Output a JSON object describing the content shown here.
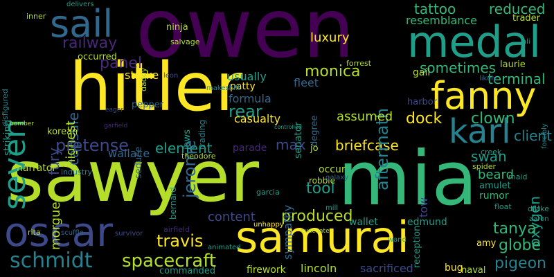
{
  "background": "#000000",
  "palette": {
    "yellow": "#fde725",
    "lime": "#b5de2b",
    "green": "#35b779",
    "teal": "#1f9e89",
    "cyan": "#26828e",
    "blue": "#31688e",
    "indigo": "#3e4989",
    "purple": "#482878",
    "violet": "#440154"
  },
  "words": [
    {
      "text": "owen",
      "color": "violet",
      "rotated": false
    },
    {
      "text": "hitler",
      "color": "yellow",
      "rotated": false
    },
    {
      "text": "sawyer",
      "color": "lime",
      "rotated": false
    },
    {
      "text": "mia",
      "color": "green",
      "rotated": false
    },
    {
      "text": "samurai",
      "color": "yellow",
      "rotated": false
    },
    {
      "text": "seven",
      "color": "teal",
      "rotated": true
    },
    {
      "text": "medal",
      "color": "teal",
      "rotated": false
    },
    {
      "text": "oscar",
      "color": "indigo",
      "rotated": false
    },
    {
      "text": "sail",
      "color": "blue",
      "rotated": false
    },
    {
      "text": "fanny",
      "color": "yellow",
      "rotated": false
    },
    {
      "text": "karl",
      "color": "cyan",
      "rotated": false
    },
    {
      "text": "schmidt",
      "color": "cyan",
      "rotated": false
    },
    {
      "text": "spacecraft",
      "color": "lime",
      "rotated": false
    },
    {
      "text": "element",
      "color": "teal",
      "rotated": false
    },
    {
      "text": "briefcase",
      "color": "yellow",
      "rotated": false
    },
    {
      "text": "monica",
      "color": "lime",
      "rotated": false
    },
    {
      "text": "tattoo",
      "color": "green",
      "rotated": false
    },
    {
      "text": "reduced",
      "color": "green",
      "rotated": false
    },
    {
      "text": "resemblance",
      "color": "green",
      "rotated": false
    },
    {
      "text": "railway",
      "color": "purple",
      "rotated": false
    },
    {
      "text": "luxury",
      "color": "yellow",
      "rotated": false
    },
    {
      "text": "aftermath",
      "color": "cyan",
      "rotated": true
    },
    {
      "text": "sometimes",
      "color": "green",
      "rotated": false
    },
    {
      "text": "terminal",
      "color": "green",
      "rotated": false
    },
    {
      "text": "panel",
      "color": "purple",
      "rotated": false
    },
    {
      "text": "jerome",
      "color": "blue",
      "rotated": true
    },
    {
      "text": "rear",
      "color": "teal",
      "rotated": false
    },
    {
      "text": "dock",
      "color": "yellow",
      "rotated": false
    },
    {
      "text": "clown",
      "color": "green",
      "rotated": false
    },
    {
      "text": "client",
      "color": "cyan",
      "rotated": false
    },
    {
      "text": "capsule",
      "color": "blue",
      "rotated": true
    },
    {
      "text": "fury",
      "color": "indigo",
      "rotated": true
    },
    {
      "text": "highest",
      "color": "lime",
      "rotated": true
    },
    {
      "text": "pretense",
      "color": "indigo",
      "rotated": false
    },
    {
      "text": "wallace",
      "color": "blue",
      "rotated": false
    },
    {
      "text": "max",
      "color": "indigo",
      "rotated": false
    },
    {
      "text": "assumed",
      "color": "lime",
      "rotated": false
    },
    {
      "text": "usually",
      "color": "teal",
      "rotated": false
    },
    {
      "text": "formula",
      "color": "blue",
      "rotated": false
    },
    {
      "text": "casualty",
      "color": "yellow",
      "rotated": false
    },
    {
      "text": "swan",
      "color": "teal",
      "rotated": false
    },
    {
      "text": "beard",
      "color": "green",
      "rotated": false
    },
    {
      "text": "oxygen",
      "color": "teal",
      "rotated": true
    },
    {
      "text": "tool",
      "color": "teal",
      "rotated": false
    },
    {
      "text": "produced",
      "color": "lime",
      "rotated": false
    },
    {
      "text": "content",
      "color": "indigo",
      "rotated": false
    },
    {
      "text": "tow",
      "color": "indigo",
      "rotated": true
    },
    {
      "text": "morgue",
      "color": "lime",
      "rotated": true
    },
    {
      "text": "travis",
      "color": "yellow",
      "rotated": false
    },
    {
      "text": "tanya",
      "color": "green",
      "rotated": false
    },
    {
      "text": "globe",
      "color": "green",
      "rotated": false
    },
    {
      "text": "pigeon",
      "color": "cyan",
      "rotated": false
    },
    {
      "text": "firework",
      "color": "lime",
      "rotated": false
    },
    {
      "text": "lincoln",
      "color": "lime",
      "rotated": false
    },
    {
      "text": "sacrificed",
      "color": "indigo",
      "rotated": false
    },
    {
      "text": "wallet",
      "color": "teal",
      "rotated": false
    },
    {
      "text": "edmund",
      "color": "teal",
      "rotated": false
    },
    {
      "text": "sympathy",
      "color": "blue",
      "rotated": true
    },
    {
      "text": "stroke",
      "color": "yellow",
      "rotated": false
    },
    {
      "text": "fleet",
      "color": "blue",
      "rotated": false
    },
    {
      "text": "striking",
      "color": "teal",
      "rotated": true
    },
    {
      "text": "narrator",
      "color": "lime",
      "rotated": false
    },
    {
      "text": "korean",
      "color": "lime",
      "rotated": false
    },
    {
      "text": "pepper",
      "color": "blue",
      "rotated": false
    },
    {
      "text": "seduce",
      "color": "blue",
      "rotated": true
    },
    {
      "text": "jaws",
      "color": "teal",
      "rotated": true
    },
    {
      "text": "senator",
      "color": "teal",
      "rotated": true
    },
    {
      "text": "degree",
      "color": "blue",
      "rotated": true
    },
    {
      "text": "harbor",
      "color": "indigo",
      "rotated": false
    },
    {
      "text": "gail",
      "color": "lime",
      "rotated": false
    },
    {
      "text": "laurie",
      "color": "lime",
      "rotated": false
    },
    {
      "text": "amulet",
      "color": "teal",
      "rotated": false
    },
    {
      "text": "rumor",
      "color": "green",
      "rotated": false
    },
    {
      "text": "amy",
      "color": "yellow",
      "rotated": false
    },
    {
      "text": "bug",
      "color": "yellow",
      "rotated": false
    },
    {
      "text": "naval",
      "color": "lime",
      "rotated": false
    },
    {
      "text": "commanded",
      "color": "teal",
      "rotated": false
    },
    {
      "text": "reception",
      "color": "teal",
      "rotated": true
    },
    {
      "text": "occur",
      "color": "lime",
      "rotated": false
    },
    {
      "text": "robbie",
      "color": "lime",
      "rotated": false
    },
    {
      "text": "parade",
      "color": "purple",
      "rotated": false
    },
    {
      "text": "jo",
      "color": "lime",
      "rotated": false
    },
    {
      "text": "patty",
      "color": "yellow",
      "rotated": false
    },
    {
      "text": "occurred",
      "color": "lime",
      "rotated": false
    },
    {
      "text": "ninja",
      "color": "lime",
      "rotated": false
    },
    {
      "text": "trader",
      "color": "lime",
      "rotated": false
    },
    {
      "text": "inner",
      "color": "lime",
      "rotated": false
    },
    {
      "text": "disfigured",
      "color": "cyan",
      "rotated": true
    },
    {
      "text": "rita",
      "color": "lime",
      "rotated": false
    },
    {
      "text": "airfield",
      "color": "purple",
      "rotated": false
    },
    {
      "text": "garcia",
      "color": "teal",
      "rotated": false
    },
    {
      "text": "bernard",
      "color": "teal",
      "rotated": true
    },
    {
      "text": "theodore",
      "color": "lime",
      "rotated": false
    },
    {
      "text": "industry",
      "color": "cyan",
      "rotated": false
    },
    {
      "text": "creek",
      "color": "teal",
      "rotated": false
    },
    {
      "text": "spider",
      "color": "lime",
      "rotated": false
    },
    {
      "text": "maid",
      "color": "teal",
      "rotated": false
    },
    {
      "text": "float",
      "color": "teal",
      "rotated": false
    },
    {
      "text": "drake",
      "color": "teal",
      "rotated": false
    },
    {
      "text": "salvage",
      "color": "lime",
      "rotated": false
    },
    {
      "text": "trading",
      "color": "cyan",
      "rotated": true
    },
    {
      "text": "forrest",
      "color": "lime",
      "rotated": false
    },
    {
      "text": "daddy",
      "color": "lime",
      "rotated": true
    },
    {
      "text": "delivers",
      "color": "teal",
      "rotated": false
    },
    {
      "text": "survivor",
      "color": "indigo",
      "rotated": false
    },
    {
      "text": "scuffle",
      "color": "blue",
      "rotated": false
    },
    {
      "text": "animated",
      "color": "teal",
      "rotated": false
    },
    {
      "text": "mill",
      "color": "teal",
      "rotated": false
    },
    {
      "text": "galaxy",
      "color": "blue",
      "rotated": false
    },
    {
      "text": "unhappy",
      "color": "yellow",
      "rotated": false
    },
    {
      "text": "wand",
      "color": "teal",
      "rotated": false
    },
    {
      "text": "aaron",
      "color": "teal",
      "rotated": false
    },
    {
      "text": "ali",
      "color": "teal",
      "rotated": false
    },
    {
      "text": "likely",
      "color": "blue",
      "rotated": false
    },
    {
      "text": "forcibly",
      "color": "cyan",
      "rotated": true
    },
    {
      "text": "makeshift",
      "color": "cyan",
      "rotated": false
    },
    {
      "text": "bomber",
      "color": "lime",
      "rotated": false
    },
    {
      "text": "leon",
      "color": "indigo",
      "rotated": false
    },
    {
      "text": "eager",
      "color": "indigo",
      "rotated": false
    },
    {
      "text": "garfield",
      "color": "purple",
      "rotated": false
    },
    {
      "text": "controlled",
      "color": "teal",
      "rotated": false
    },
    {
      "text": "evacuate",
      "color": "lime",
      "rotated": false
    }
  ]
}
